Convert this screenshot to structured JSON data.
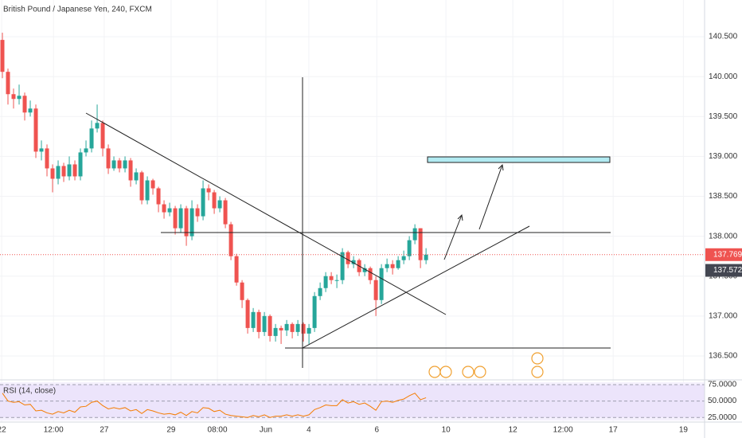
{
  "chart_data": {
    "type": "candlestick",
    "title": "British Pound / Japanese Yen, 240, FXCM",
    "up_color": "#26a69a",
    "down_color": "#ef5350",
    "grid": true,
    "open": [
      140.46,
      140.06,
      139.78,
      139.72,
      139.76,
      139.55,
      139.6,
      139.06,
      139.1,
      138.85,
      138.72,
      138.88,
      138.75,
      138.9,
      138.75,
      139.05,
      139.1,
      139.35,
      139.42,
      139.1,
      138.85,
      138.95,
      138.85,
      138.95,
      138.7,
      138.8,
      138.45,
      138.7,
      138.6,
      138.4,
      138.3,
      138.35,
      138.1,
      138.35,
      138.0,
      138.35,
      138.25,
      138.6,
      138.55,
      138.35,
      138.45,
      138.15,
      137.75,
      137.42,
      137.2,
      136.85,
      137.05,
      136.8,
      137.0,
      136.75,
      136.85,
      136.82,
      136.9,
      136.8,
      136.9,
      136.78,
      136.85,
      137.25,
      137.35,
      137.5,
      137.45,
      137.45,
      137.8,
      137.65,
      137.7,
      137.55,
      137.6,
      137.45,
      137.2,
      137.6,
      137.65,
      137.6,
      137.7,
      137.75,
      137.95,
      138.1,
      137.7
    ],
    "high": [
      140.55,
      140.1,
      139.85,
      139.9,
      139.8,
      139.7,
      139.65,
      139.2,
      139.15,
      138.9,
      138.95,
      138.92,
      139.0,
      138.95,
      139.1,
      139.2,
      139.45,
      139.65,
      139.45,
      139.15,
      139.0,
      138.98,
      139.0,
      138.98,
      138.85,
      138.82,
      138.75,
      138.72,
      138.62,
      138.45,
      138.42,
      138.38,
      138.4,
      138.38,
      138.45,
      138.4,
      138.7,
      138.65,
      138.58,
      138.5,
      138.48,
      138.18,
      137.78,
      137.45,
      137.22,
      137.1,
      137.08,
      137.05,
      137.02,
      136.9,
      136.88,
      136.95,
      136.92,
      136.95,
      136.92,
      136.9,
      137.3,
      137.42,
      137.55,
      137.55,
      137.52,
      137.85,
      137.82,
      137.75,
      137.72,
      137.65,
      137.62,
      137.5,
      137.65,
      137.72,
      137.7,
      137.75,
      137.82,
      138.0,
      138.15,
      138.1,
      137.85
    ],
    "low": [
      139.98,
      139.65,
      139.6,
      139.65,
      139.45,
      139.5,
      138.98,
      138.95,
      138.75,
      138.55,
      138.65,
      138.68,
      138.7,
      138.7,
      138.7,
      139.0,
      139.05,
      139.3,
      139.0,
      138.78,
      138.82,
      138.8,
      138.8,
      138.62,
      138.65,
      138.4,
      138.4,
      138.52,
      138.3,
      138.22,
      138.25,
      138.02,
      138.05,
      137.88,
      137.95,
      138.18,
      138.2,
      138.45,
      138.28,
      138.3,
      138.1,
      137.7,
      137.38,
      137.1,
      136.78,
      136.8,
      136.72,
      136.75,
      136.68,
      136.68,
      136.65,
      136.75,
      136.72,
      136.75,
      136.68,
      136.65,
      136.8,
      137.2,
      137.3,
      137.4,
      137.35,
      137.4,
      137.6,
      137.6,
      137.5,
      137.5,
      137.4,
      137.0,
      137.15,
      137.55,
      137.52,
      137.58,
      137.65,
      137.7,
      137.9,
      137.6,
      137.65
    ],
    "close": [
      140.06,
      139.78,
      139.72,
      139.76,
      139.55,
      139.6,
      139.06,
      139.1,
      138.85,
      138.72,
      138.88,
      138.75,
      138.9,
      138.75,
      139.05,
      139.1,
      139.35,
      139.42,
      139.1,
      138.85,
      138.95,
      138.85,
      138.95,
      138.7,
      138.8,
      138.45,
      138.7,
      138.6,
      138.4,
      138.3,
      138.35,
      138.1,
      138.35,
      138.0,
      138.35,
      138.25,
      138.6,
      138.55,
      138.35,
      138.45,
      138.15,
      137.75,
      137.42,
      137.2,
      136.85,
      137.05,
      136.8,
      137.0,
      136.75,
      136.85,
      136.82,
      136.9,
      136.8,
      136.9,
      136.78,
      136.85,
      137.25,
      137.35,
      137.5,
      137.45,
      137.45,
      137.8,
      137.65,
      137.7,
      137.55,
      137.6,
      137.45,
      137.2,
      137.6,
      137.65,
      137.6,
      137.7,
      137.75,
      137.95,
      138.1,
      137.7,
      137.769
    ],
    "xlim": [
      0,
      126.4
    ],
    "xticks": [
      {
        "value": 0.3,
        "label": "22"
      },
      {
        "value": 9.6,
        "label": "12:00"
      },
      {
        "value": 18.7,
        "label": "27"
      },
      {
        "value": 30.7,
        "label": "29"
      },
      {
        "value": 39,
        "label": "08:00"
      },
      {
        "value": 47.7,
        "label": "Jun"
      },
      {
        "value": 55.4,
        "label": "4"
      },
      {
        "value": 67.6,
        "label": "6"
      },
      {
        "value": 80,
        "label": "10"
      },
      {
        "value": 92,
        "label": "12"
      },
      {
        "value": 101,
        "label": "12:00"
      },
      {
        "value": 110,
        "label": "17"
      },
      {
        "value": 122.6,
        "label": "19"
      }
    ],
    "ylim": [
      136.22,
      140.96
    ],
    "yticks": [
      {
        "value": 136.5,
        "label": "136.500"
      },
      {
        "value": 137,
        "label": "137.000"
      },
      {
        "value": 137.5,
        "label": "137.500"
      },
      {
        "value": 138,
        "label": "138.000"
      },
      {
        "value": 138.5,
        "label": "138.500"
      },
      {
        "value": 139,
        "label": "139.000"
      },
      {
        "value": 139.5,
        "label": "139.500"
      },
      {
        "value": 140,
        "label": "140.000"
      },
      {
        "value": 140.5,
        "label": "140.500"
      }
    ],
    "last_price": 137.769,
    "last_price_color": "#ef5350",
    "marked_price": 137.572,
    "rsi_title": "RSI (14, close)",
    "rsi_color": "#f57c00",
    "rsi": [
      62,
      50,
      48,
      49,
      44,
      45,
      35,
      36,
      32,
      30,
      34,
      32,
      36,
      33,
      41,
      42,
      48,
      50,
      43,
      38,
      40,
      38,
      40,
      35,
      37,
      31,
      37,
      35,
      32,
      30,
      31,
      29,
      33,
      28,
      34,
      32,
      40,
      39,
      34,
      36,
      30,
      28,
      27,
      26,
      25,
      28,
      26,
      29,
      25,
      27,
      27,
      29,
      27,
      29,
      27,
      29,
      37,
      40,
      44,
      43,
      43,
      52,
      47,
      49,
      45,
      47,
      42,
      36,
      49,
      50,
      48,
      51,
      53,
      58,
      62,
      52,
      55
    ],
    "rsi_ylim": [
      18,
      81
    ],
    "rsi_yticks": [
      {
        "value": 25,
        "label": "25.0000"
      },
      {
        "value": 50,
        "label": "50.0000"
      },
      {
        "value": 75,
        "label": "75.0000"
      }
    ]
  }
}
